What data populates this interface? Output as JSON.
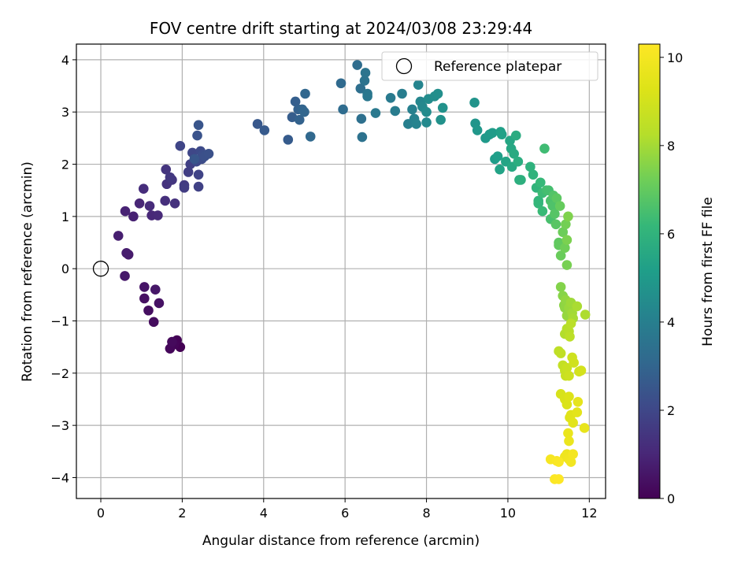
{
  "chart_data": {
    "type": "scatter",
    "title": "FOV centre drift starting at 2024/03/08 23:29:44",
    "xlabel": "Angular distance from reference (arcmin)",
    "ylabel": "Rotation from reference (arcmin)",
    "xlim": [
      -0.6,
      12.4
    ],
    "ylim": [
      -4.4,
      4.3
    ],
    "xticks": [
      0,
      2,
      4,
      6,
      8,
      10,
      12
    ],
    "yticks": [
      -4,
      -3,
      -2,
      -1,
      0,
      1,
      2,
      3,
      4
    ],
    "grid": true,
    "legend": {
      "position": "top-right",
      "entries": [
        "Reference platepar"
      ]
    },
    "reference_point": {
      "x": 0,
      "y": 0,
      "label": "Reference platepar"
    },
    "colorbar": {
      "label": "Hours from first FF file",
      "colormap": "viridis",
      "range": [
        0,
        10.3
      ],
      "ticks": [
        0,
        2,
        4,
        6,
        8,
        10
      ]
    },
    "series": [
      {
        "points": [
          [
            1.95,
            -1.5
          ],
          [
            1.87,
            -1.37
          ],
          [
            1.8,
            -1.45
          ],
          [
            1.7,
            -1.53
          ],
          [
            1.75,
            -1.4
          ],
          [
            1.3,
            -1.02
          ],
          [
            1.17,
            -0.8
          ],
          [
            1.07,
            -0.57
          ],
          [
            1.43,
            -0.66
          ],
          [
            1.07,
            -0.35
          ],
          [
            1.34,
            -0.4
          ],
          [
            0.59,
            -0.14
          ],
          [
            0.68,
            0.27
          ],
          [
            0.63,
            0.3
          ],
          [
            0.43,
            0.63
          ],
          [
            0.8,
            1.0
          ],
          [
            0.6,
            1.1
          ],
          [
            0.95,
            1.25
          ],
          [
            1.25,
            1.02
          ],
          [
            1.4,
            1.02
          ],
          [
            1.2,
            1.2
          ],
          [
            1.05,
            1.53
          ],
          [
            1.58,
            1.3
          ],
          [
            1.82,
            1.25
          ],
          [
            1.62,
            1.62
          ],
          [
            1.6,
            1.9
          ],
          [
            1.75,
            1.7
          ],
          [
            1.7,
            1.75
          ],
          [
            2.05,
            1.6
          ],
          [
            2.05,
            1.55
          ],
          [
            2.15,
            1.85
          ],
          [
            2.2,
            2.0
          ],
          [
            2.4,
            1.57
          ],
          [
            2.4,
            1.8
          ],
          [
            1.95,
            2.35
          ],
          [
            2.25,
            2.22
          ],
          [
            2.35,
            2.05
          ],
          [
            2.45,
            2.25
          ],
          [
            2.48,
            2.1
          ],
          [
            2.5,
            2.18
          ],
          [
            2.55,
            2.15
          ],
          [
            2.65,
            2.2
          ],
          [
            2.37,
            2.55
          ],
          [
            2.4,
            2.75
          ],
          [
            2.3,
            2.1
          ],
          [
            3.85,
            2.77
          ],
          [
            4.02,
            2.65
          ],
          [
            4.6,
            2.47
          ],
          [
            4.7,
            2.9
          ],
          [
            4.78,
            3.2
          ],
          [
            4.85,
            3.05
          ],
          [
            4.88,
            2.85
          ],
          [
            4.95,
            3.05
          ],
          [
            5.0,
            3.0
          ],
          [
            5.02,
            3.35
          ],
          [
            5.15,
            2.53
          ],
          [
            5.9,
            3.55
          ],
          [
            5.95,
            3.05
          ],
          [
            6.3,
            3.9
          ],
          [
            6.38,
            3.45
          ],
          [
            6.4,
            2.87
          ],
          [
            6.42,
            2.52
          ],
          [
            6.48,
            3.6
          ],
          [
            6.5,
            3.75
          ],
          [
            6.55,
            3.35
          ],
          [
            6.55,
            3.3
          ],
          [
            6.75,
            2.98
          ],
          [
            7.12,
            3.27
          ],
          [
            7.23,
            3.02
          ],
          [
            7.4,
            3.35
          ],
          [
            7.55,
            2.77
          ],
          [
            7.65,
            3.05
          ],
          [
            7.7,
            2.87
          ],
          [
            7.75,
            2.77
          ],
          [
            7.8,
            3.52
          ],
          [
            7.85,
            3.2
          ],
          [
            7.9,
            3.1
          ],
          [
            8.0,
            2.8
          ],
          [
            8.0,
            3.0
          ],
          [
            8.05,
            3.25
          ],
          [
            8.2,
            3.3
          ],
          [
            8.28,
            3.35
          ],
          [
            8.35,
            2.85
          ],
          [
            8.4,
            3.08
          ],
          [
            9.18,
            3.18
          ],
          [
            9.2,
            2.78
          ],
          [
            9.25,
            2.65
          ],
          [
            9.45,
            2.5
          ],
          [
            9.55,
            2.57
          ],
          [
            9.62,
            2.6
          ],
          [
            9.68,
            2.1
          ],
          [
            9.75,
            2.15
          ],
          [
            9.82,
            2.62
          ],
          [
            9.85,
            2.57
          ],
          [
            9.8,
            1.9
          ],
          [
            9.95,
            2.05
          ],
          [
            10.05,
            2.45
          ],
          [
            10.08,
            2.3
          ],
          [
            10.1,
            1.95
          ],
          [
            10.15,
            2.2
          ],
          [
            10.2,
            2.55
          ],
          [
            10.25,
            2.05
          ],
          [
            10.28,
            1.7
          ],
          [
            10.32,
            1.7
          ],
          [
            10.55,
            1.95
          ],
          [
            10.62,
            1.8
          ],
          [
            10.7,
            1.55
          ],
          [
            10.75,
            1.3
          ],
          [
            10.75,
            1.25
          ],
          [
            10.8,
            1.65
          ],
          [
            10.85,
            1.1
          ],
          [
            10.85,
            1.45
          ],
          [
            10.9,
            2.3
          ],
          [
            10.95,
            1.5
          ],
          [
            11.0,
            1.5
          ],
          [
            11.05,
            0.95
          ],
          [
            11.05,
            1.3
          ],
          [
            11.1,
            1.2
          ],
          [
            11.12,
            1.4
          ],
          [
            11.15,
            1.05
          ],
          [
            11.18,
            0.85
          ],
          [
            11.2,
            1.35
          ],
          [
            11.25,
            0.5
          ],
          [
            11.25,
            0.45
          ],
          [
            11.28,
            1.2
          ],
          [
            11.3,
            0.25
          ],
          [
            11.35,
            0.7
          ],
          [
            11.4,
            0.4
          ],
          [
            11.42,
            0.85
          ],
          [
            11.45,
            0.07
          ],
          [
            11.45,
            0.55
          ],
          [
            11.48,
            1.0
          ],
          [
            11.3,
            -0.35
          ],
          [
            11.35,
            -0.52
          ],
          [
            11.38,
            -0.7
          ],
          [
            11.4,
            -0.75
          ],
          [
            11.42,
            -0.6
          ],
          [
            11.45,
            -0.9
          ],
          [
            11.5,
            -0.75
          ],
          [
            11.55,
            -0.65
          ],
          [
            11.58,
            -0.85
          ],
          [
            11.6,
            -0.95
          ],
          [
            11.7,
            -0.72
          ],
          [
            11.9,
            -0.88
          ],
          [
            11.4,
            -1.25
          ],
          [
            11.45,
            -1.15
          ],
          [
            11.5,
            -1.2
          ],
          [
            11.55,
            -1.05
          ],
          [
            11.52,
            -1.3
          ],
          [
            11.25,
            -1.58
          ],
          [
            11.3,
            -1.62
          ],
          [
            11.35,
            -1.85
          ],
          [
            11.4,
            -1.95
          ],
          [
            11.42,
            -2.05
          ],
          [
            11.45,
            -1.9
          ],
          [
            11.5,
            -2.05
          ],
          [
            11.58,
            -1.7
          ],
          [
            11.62,
            -1.8
          ],
          [
            11.75,
            -1.97
          ],
          [
            11.8,
            -1.95
          ],
          [
            11.3,
            -2.4
          ],
          [
            11.4,
            -2.5
          ],
          [
            11.45,
            -2.6
          ],
          [
            11.5,
            -2.45
          ],
          [
            11.52,
            -2.85
          ],
          [
            11.55,
            -2.8
          ],
          [
            11.6,
            -2.95
          ],
          [
            11.7,
            -2.75
          ],
          [
            11.72,
            -2.55
          ],
          [
            11.88,
            -3.05
          ],
          [
            11.48,
            -3.15
          ],
          [
            11.5,
            -3.3
          ],
          [
            11.45,
            -3.55
          ],
          [
            11.4,
            -3.6
          ],
          [
            11.5,
            -3.65
          ],
          [
            11.55,
            -3.7
          ],
          [
            11.6,
            -3.55
          ],
          [
            11.05,
            -3.65
          ],
          [
            11.2,
            -3.68
          ],
          [
            11.25,
            -3.7
          ],
          [
            11.15,
            -4.03
          ],
          [
            11.25,
            -4.03
          ]
        ]
      }
    ]
  }
}
